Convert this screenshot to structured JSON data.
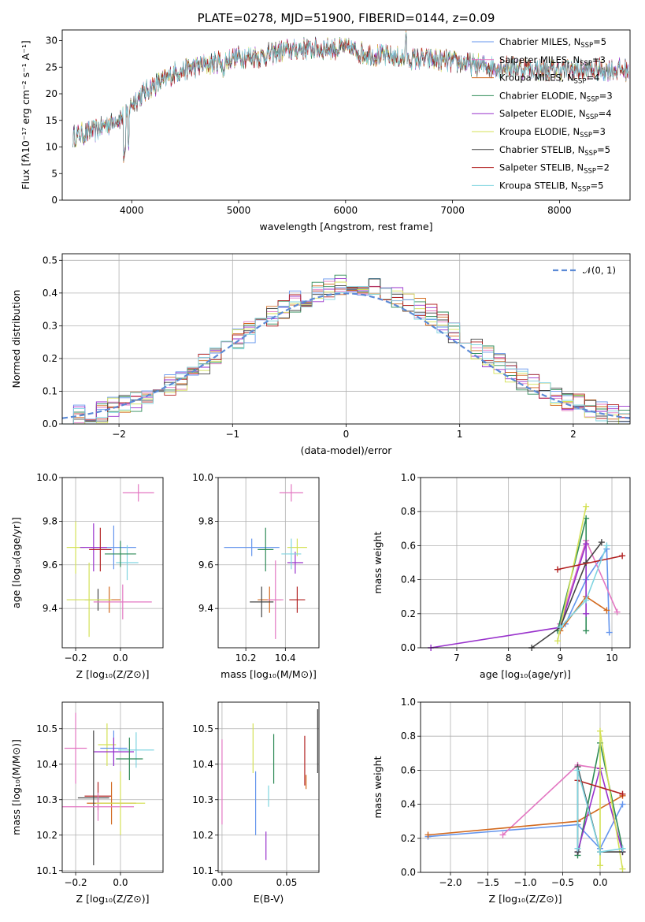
{
  "colors": [
    "#6495ed",
    "#e377c2",
    "#d2691e",
    "#2e8b57",
    "#9932cc",
    "#d4e157",
    "#444444",
    "#b22222",
    "#7fd4e0"
  ],
  "chart_data": [
    {
      "id": "spectrum",
      "type": "line",
      "title": "PLATE=0278, MJD=51900, FIBERID=0144, z=0.09",
      "xlabel": "wavelength [Angstrom, rest frame]",
      "ylabel": "Flux [fλ10⁻¹⁷ erg cm⁻² s⁻¹ A⁻¹]",
      "xlim": [
        3350,
        8660
      ],
      "ylim": [
        0,
        32
      ],
      "xticks": [
        "4000",
        "5000",
        "6000",
        "7000",
        "8000"
      ],
      "yticks": [
        "0",
        "5",
        "10",
        "15",
        "20",
        "25",
        "30"
      ],
      "continuum": {
        "x": [
          3450,
          3550,
          3650,
          3750,
          3850,
          3950,
          4000,
          4100,
          4200,
          4300,
          4400,
          4500,
          4600,
          4700,
          4800,
          4900,
          5000,
          5200,
          5400,
          5600,
          5800,
          6000,
          6200,
          6400,
          6600,
          6800,
          7000,
          7200,
          7400,
          7600,
          7800,
          8000,
          8200,
          8400,
          8600
        ],
        "y": [
          12,
          12.5,
          13,
          14,
          15,
          16,
          18,
          20,
          21.5,
          22.5,
          24,
          24.5,
          25,
          25.5,
          26,
          26.5,
          27,
          27,
          28,
          28.5,
          28.5,
          28.5,
          27.5,
          27,
          26.5,
          26.5,
          26,
          25.5,
          25,
          25,
          24.5,
          24.5,
          24.5,
          24.5,
          24.5
        ]
      },
      "series": [
        {
          "name": "Chabrier MILES, N",
          "sub": "SSP",
          "eq": "=5"
        },
        {
          "name": "Salpeter MILES, N",
          "sub": "SSP",
          "eq": "=3"
        },
        {
          "name": "Kroupa MILES, N",
          "sub": "SSP",
          "eq": "=4"
        },
        {
          "name": "Chabrier ELODIE, N",
          "sub": "SSP",
          "eq": "=3"
        },
        {
          "name": "Salpeter ELODIE, N",
          "sub": "SSP",
          "eq": "=4"
        },
        {
          "name": "Kroupa ELODIE, N",
          "sub": "SSP",
          "eq": "=3"
        },
        {
          "name": "Chabrier STELIB, N",
          "sub": "SSP",
          "eq": "=5"
        },
        {
          "name": "Salpeter STELIB, N",
          "sub": "SSP",
          "eq": "=2"
        },
        {
          "name": "Kroupa STELIB, N",
          "sub": "SSP",
          "eq": "=5"
        }
      ]
    },
    {
      "id": "residuals",
      "type": "bar",
      "xlabel": "(data-model)/error",
      "ylabel": "Normed distribution",
      "xlim": [
        -2.5,
        2.5
      ],
      "ylim": [
        0,
        0.52
      ],
      "xticks": [
        "−2",
        "−1",
        "0",
        "1",
        "2"
      ],
      "yticks": [
        "0.0",
        "0.1",
        "0.2",
        "0.3",
        "0.4",
        "0.5"
      ],
      "legend": "𝒩(0, 1)",
      "legend_position": "top-right",
      "bins": [
        -2.5,
        -2.4,
        -2.3,
        -2.2,
        -2.1,
        -2.0,
        -1.9,
        -1.8,
        -1.7,
        -1.6,
        -1.5,
        -1.4,
        -1.3,
        -1.2,
        -1.1,
        -1.0,
        -0.9,
        -0.8,
        -0.7,
        -0.6,
        -0.5,
        -0.4,
        -0.3,
        -0.2,
        -0.1,
        0.0,
        0.1,
        0.2,
        0.3,
        0.4,
        0.5,
        0.6,
        0.7,
        0.8,
        0.9,
        1.0,
        1.1,
        1.2,
        1.3,
        1.4,
        1.5,
        1.6,
        1.7,
        1.8,
        1.9,
        2.0,
        2.1,
        2.2,
        2.3,
        2.4,
        2.5
      ]
    },
    {
      "id": "age-vs-Z",
      "type": "scatter",
      "xlabel": "Z [log₁₀(Z/Z⊙)]",
      "ylabel": "age  [log₁₀(age/yr)]",
      "xlim": [
        -0.26,
        0.19
      ],
      "ylim": [
        9.22,
        10.0
      ],
      "xticks": [
        "−0.2",
        "0.0"
      ],
      "yticks": [
        "9.4",
        "9.6",
        "9.8",
        "10.0"
      ],
      "errorbars": [
        {
          "x": 0.08,
          "y": 9.93,
          "dx": 0.07,
          "dy": 0.04
        },
        {
          "x": -0.2,
          "y": 9.68,
          "dx": 0.04,
          "dy": 0.12
        },
        {
          "x": -0.03,
          "y": 9.68,
          "dx": 0.1,
          "dy": 0.1
        },
        {
          "x": -0.12,
          "y": 9.68,
          "dx": 0.06,
          "dy": 0.11
        },
        {
          "x": 0.03,
          "y": 9.61,
          "dx": 0.05,
          "dy": 0.08
        },
        {
          "x": 0.0,
          "y": 9.65,
          "dx": 0.07,
          "dy": 0.06
        },
        {
          "x": -0.09,
          "y": 9.67,
          "dx": 0.05,
          "dy": 0.1
        },
        {
          "x": -0.05,
          "y": 9.44,
          "dx": 0.05,
          "dy": 0.06
        },
        {
          "x": -0.1,
          "y": 9.44,
          "dx": 0.06,
          "dy": 0.05
        },
        {
          "x": 0.01,
          "y": 9.43,
          "dx": 0.13,
          "dy": 0.08
        },
        {
          "x": -0.14,
          "y": 9.44,
          "dx": 0.1,
          "dy": 0.17
        }
      ]
    },
    {
      "id": "age-vs-mass",
      "type": "scatter",
      "xlabel": "mass [log₁₀(M/M⊙)]",
      "ylabel": "",
      "xlim": [
        10.06,
        10.57
      ],
      "ylim": [
        9.22,
        10.0
      ],
      "xticks": [
        "10.2",
        "10.4"
      ],
      "yticks": [
        "9.4",
        "9.6",
        "9.8",
        "10.0"
      ],
      "errorbars": [
        {
          "x": 10.43,
          "y": 9.93,
          "dx": 0.06,
          "dy": 0.04
        },
        {
          "x": 10.46,
          "y": 9.68,
          "dx": 0.05,
          "dy": 0.04
        },
        {
          "x": 10.23,
          "y": 9.68,
          "dx": 0.14,
          "dy": 0.04
        },
        {
          "x": 10.45,
          "y": 9.61,
          "dx": 0.04,
          "dy": 0.05
        },
        {
          "x": 10.43,
          "y": 9.65,
          "dx": 0.05,
          "dy": 0.07
        },
        {
          "x": 10.3,
          "y": 9.67,
          "dx": 0.04,
          "dy": 0.1
        },
        {
          "x": 10.46,
          "y": 9.44,
          "dx": 0.04,
          "dy": 0.06
        },
        {
          "x": 10.32,
          "y": 9.44,
          "dx": 0.06,
          "dy": 0.06
        },
        {
          "x": 10.28,
          "y": 9.43,
          "dx": 0.06,
          "dy": 0.07
        },
        {
          "x": 10.35,
          "y": 9.44,
          "dx": 0.04,
          "dy": 0.18
        }
      ]
    },
    {
      "id": "weight-vs-age",
      "type": "line",
      "xlabel": "age  [log₁₀(age/yr)]",
      "ylabel": "mass weight",
      "xlim": [
        6.3,
        10.35
      ],
      "ylim": [
        0,
        1.0
      ],
      "xticks": [
        "7",
        "8",
        "9",
        "10"
      ],
      "yticks": [
        "0.0",
        "0.2",
        "0.4",
        "0.6",
        "0.8",
        "1.0"
      ],
      "series": [
        {
          "name": "Chabrier MILES",
          "x": [
            9.1,
            9.5,
            9.9,
            9.95
          ],
          "y": [
            0.14,
            0.4,
            0.58,
            0.09
          ]
        },
        {
          "name": "Salpeter MILES",
          "x": [
            9.0,
            9.5,
            10.1
          ],
          "y": [
            0.14,
            0.63,
            0.21
          ]
        },
        {
          "name": "Kroupa MILES",
          "x": [
            9.0,
            9.5,
            9.9
          ],
          "y": [
            0.1,
            0.3,
            0.22
          ]
        },
        {
          "name": "Chabrier ELODIE",
          "x": [
            8.95,
            9.5,
            9.5
          ],
          "y": [
            0.1,
            0.76,
            0.1
          ]
        },
        {
          "name": "Salpeter ELODIE",
          "x": [
            6.5,
            9.0,
            9.5,
            9.5
          ],
          "y": [
            0.0,
            0.12,
            0.61,
            0.2
          ]
        },
        {
          "name": "Kroupa ELODIE",
          "x": [
            8.95,
            9.5
          ],
          "y": [
            0.04,
            0.83
          ]
        },
        {
          "name": "Chabrier STELIB",
          "x": [
            8.45,
            9.0,
            9.5,
            9.8
          ],
          "y": [
            0.0,
            0.12,
            0.5,
            0.62
          ]
        },
        {
          "name": "Salpeter STELIB",
          "x": [
            8.95,
            10.2
          ],
          "y": [
            0.46,
            0.54
          ]
        },
        {
          "name": "Kroupa STELIB",
          "x": [
            9.0,
            9.5,
            9.9
          ],
          "y": [
            0.12,
            0.28,
            0.6
          ]
        }
      ]
    },
    {
      "id": "mass-vs-Z",
      "type": "scatter",
      "xlabel": "Z [log₁₀(Z/Z⊙)]",
      "ylabel": "mass [log₁₀(M/M⊙)]",
      "xlim": [
        -0.26,
        0.19
      ],
      "ylim": [
        10.095,
        10.575
      ],
      "xticks": [
        "−0.2",
        "0.0"
      ],
      "yticks": [
        "10.1",
        "10.2",
        "10.3",
        "10.4",
        "10.5"
      ],
      "errorbars": [
        {
          "x": -0.2,
          "y": 10.445,
          "dx": 0.05,
          "dy": 0.1
        },
        {
          "x": -0.06,
          "y": 10.455,
          "dx": 0.04,
          "dy": 0.06
        },
        {
          "x": -0.03,
          "y": 10.445,
          "dx": 0.06,
          "dy": 0.05
        },
        {
          "x": -0.03,
          "y": 10.435,
          "dx": 0.09,
          "dy": 0.04
        },
        {
          "x": 0.07,
          "y": 10.44,
          "dx": 0.08,
          "dy": 0.05
        },
        {
          "x": 0.04,
          "y": 10.415,
          "dx": 0.06,
          "dy": 0.06
        },
        {
          "x": -0.1,
          "y": 10.31,
          "dx": 0.06,
          "dy": 0.04
        },
        {
          "x": -0.04,
          "y": 10.29,
          "dx": 0.11,
          "dy": 0.06
        },
        {
          "x": -0.12,
          "y": 10.305,
          "dx": 0.07,
          "dy": 0.19
        },
        {
          "x": -0.1,
          "y": 10.28,
          "dx": 0.16,
          "dy": 0.04
        },
        {
          "x": 0.0,
          "y": 10.29,
          "dx": 0.11,
          "dy": 0.09
        }
      ]
    },
    {
      "id": "mass-vs-EBV",
      "type": "scatter",
      "xlabel": "E(B-V)",
      "ylabel": "",
      "xlim": [
        -0.003,
        0.075
      ],
      "ylim": [
        10.095,
        10.575
      ],
      "xticks": [
        "0.00",
        "0.05"
      ],
      "yticks": [
        "10.1",
        "10.2",
        "10.3",
        "10.4",
        "10.5"
      ],
      "errorbars": [
        {
          "x": 0.0,
          "y": 10.35,
          "dx": 0,
          "dy": 0.12
        },
        {
          "x": 0.024,
          "y": 10.445,
          "dx": 0,
          "dy": 0.07
        },
        {
          "x": 0.026,
          "y": 10.29,
          "dx": 0,
          "dy": 0.09
        },
        {
          "x": 0.034,
          "y": 10.17,
          "dx": 0,
          "dy": 0.04
        },
        {
          "x": 0.036,
          "y": 10.31,
          "dx": 0,
          "dy": 0.03
        },
        {
          "x": 0.04,
          "y": 10.415,
          "dx": 0,
          "dy": 0.07
        },
        {
          "x": 0.064,
          "y": 10.41,
          "dx": 0,
          "dy": 0.07
        },
        {
          "x": 0.065,
          "y": 10.35,
          "dx": 0,
          "dy": 0.02
        },
        {
          "x": 0.074,
          "y": 10.465,
          "dx": 0,
          "dy": 0.09
        }
      ]
    },
    {
      "id": "weight-vs-Z",
      "type": "line",
      "xlabel": "Z [log₁₀(Z/Z⊙)]",
      "ylabel": "mass weight",
      "xlim": [
        -2.4,
        0.4
      ],
      "ylim": [
        0,
        1.0
      ],
      "xticks": [
        "−2.0",
        "−1.5",
        "−1.0",
        "−0.5",
        "0.0"
      ],
      "yticks": [
        "0.0",
        "0.2",
        "0.4",
        "0.6",
        "0.8",
        "1.0"
      ],
      "series": [
        {
          "name": "Chabrier MILES",
          "x": [
            -2.3,
            -0.3,
            0.0,
            0.3
          ],
          "y": [
            0.21,
            0.28,
            0.14,
            0.4
          ]
        },
        {
          "name": "Salpeter MILES",
          "x": [
            -1.3,
            -0.3,
            0.0
          ],
          "y": [
            0.22,
            0.63,
            0.61
          ]
        },
        {
          "name": "Kroupa MILES",
          "x": [
            -2.3,
            -0.3,
            0.3
          ],
          "y": [
            0.22,
            0.3,
            0.45
          ]
        },
        {
          "name": "Chabrier ELODIE",
          "x": [
            -0.3,
            0.0,
            0.3
          ],
          "y": [
            0.1,
            0.76,
            0.14
          ]
        },
        {
          "name": "Salpeter ELODIE",
          "x": [
            -0.3,
            0.0,
            0.3
          ],
          "y": [
            0.12,
            0.61,
            0.12
          ]
        },
        {
          "name": "Kroupa ELODIE",
          "x": [
            0.0,
            0.0,
            0.3
          ],
          "y": [
            0.04,
            0.83,
            0.02
          ]
        },
        {
          "name": "Chabrier STELIB",
          "x": [
            -0.3,
            -0.3,
            0.0,
            0.3
          ],
          "y": [
            0.12,
            0.62,
            0.12,
            0.12
          ]
        },
        {
          "name": "Salpeter STELIB",
          "x": [
            -0.3,
            0.3
          ],
          "y": [
            0.54,
            0.46
          ]
        },
        {
          "name": "Kroupa STELIB",
          "x": [
            -0.3,
            -0.3,
            0.0,
            0.3
          ],
          "y": [
            0.14,
            0.6,
            0.12,
            0.14
          ]
        }
      ]
    }
  ]
}
